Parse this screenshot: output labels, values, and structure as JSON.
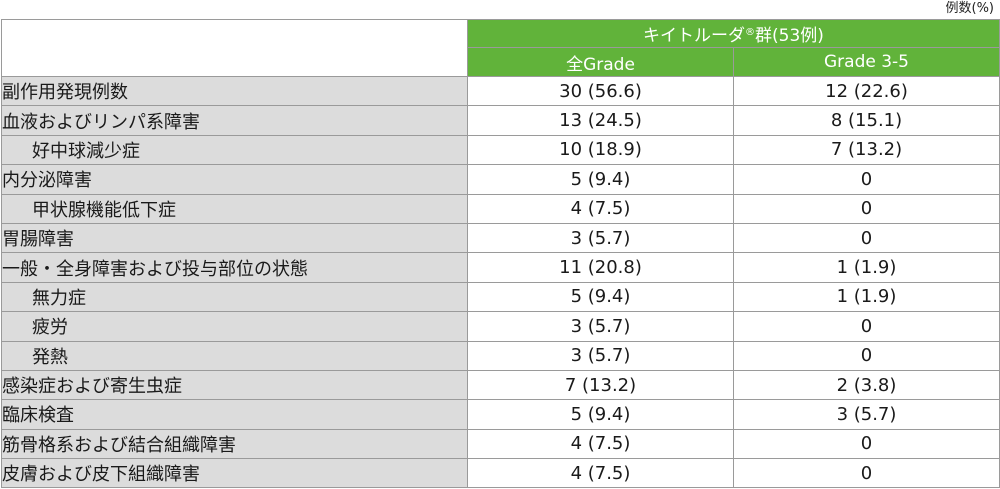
{
  "unit_note": "例数(%)",
  "header": {
    "group_label": "キイトルーダ",
    "group_reg": "®",
    "group_suffix": "群(53例)",
    "col_all": "全Grade",
    "col_grade": "Grade 3-5"
  },
  "rows": [
    {
      "label": "副作用発現例数",
      "all": "30 (56.6)",
      "grade": "12 (22.6)",
      "indent": false
    },
    {
      "label": "血液およびリンパ系障害",
      "all": "13 (24.5)",
      "grade": "8 (15.1)",
      "indent": false
    },
    {
      "label": "好中球減少症",
      "all": "10 (18.9)",
      "grade": "7 (13.2)",
      "indent": true
    },
    {
      "label": "内分泌障害",
      "all": "5 (9.4)",
      "grade": "0",
      "indent": false
    },
    {
      "label": "甲状腺機能低下症",
      "all": "4 (7.5)",
      "grade": "0",
      "indent": true
    },
    {
      "label": "胃腸障害",
      "all": "3 (5.7)",
      "grade": "0",
      "indent": false
    },
    {
      "label": "一般・全身障害および投与部位の状態",
      "all": "11 (20.8)",
      "grade": "1 (1.9)",
      "indent": false
    },
    {
      "label": "無力症",
      "all": "5 (9.4)",
      "grade": "1 (1.9)",
      "indent": true
    },
    {
      "label": "疲労",
      "all": "3 (5.7)",
      "grade": "0",
      "indent": true
    },
    {
      "label": "発熱",
      "all": "3 (5.7)",
      "grade": "0",
      "indent": true
    },
    {
      "label": "感染症および寄生虫症",
      "all": "7 (13.2)",
      "grade": "2 (3.8)",
      "indent": false
    },
    {
      "label": "臨床検査",
      "all": "5 (9.4)",
      "grade": "3 (5.7)",
      "indent": false
    },
    {
      "label": "筋骨格系および結合組織障害",
      "all": "4 (7.5)",
      "grade": "0",
      "indent": false
    },
    {
      "label": "皮膚および皮下組織障害",
      "all": "4 (7.5)",
      "grade": "0",
      "indent": false
    }
  ]
}
